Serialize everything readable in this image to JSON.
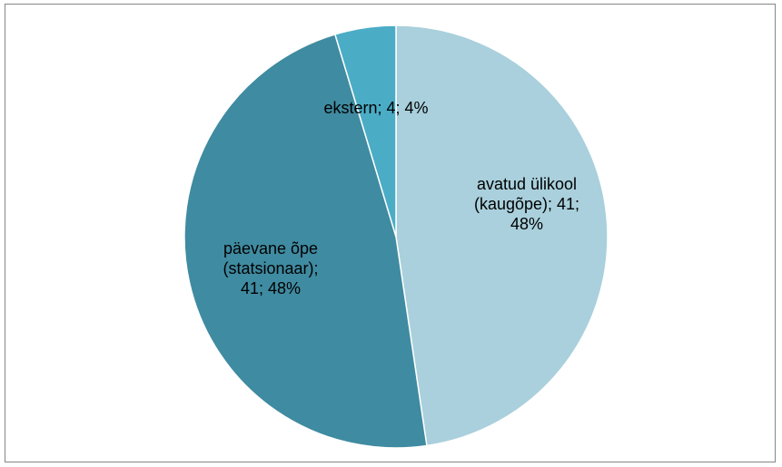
{
  "chart_data": {
    "type": "pie",
    "title": "",
    "start_angle_deg": 0,
    "direction": "clockwise",
    "slices": [
      {
        "name": "avatud ülikool (kaugõpe)",
        "value": 41,
        "percent": "48%",
        "color": "#a9d0dc",
        "label_lines": [
          "avatud ülikool",
          "(kaugõpe); 41;",
          "48%"
        ]
      },
      {
        "name": "päevane õpe (statsionaar)",
        "value": 41,
        "percent": "48%",
        "color": "#3f8ba1",
        "label_lines": [
          "päevane õpe",
          "(statsionaar);",
          "41; 48%"
        ]
      },
      {
        "name": "ekstern",
        "value": 4,
        "percent": "4%",
        "color": "#4bacc6",
        "label_lines": [
          "ekstern; 4; 4%"
        ]
      }
    ]
  }
}
